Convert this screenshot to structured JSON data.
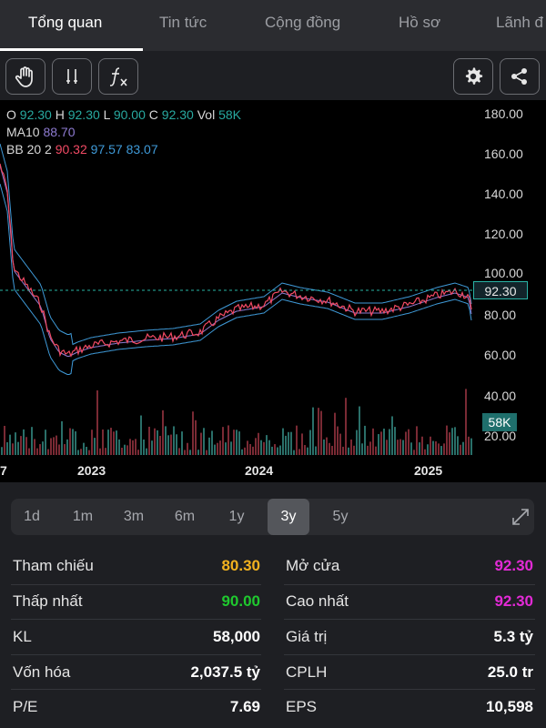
{
  "tabs": [
    {
      "label": "Tổng quan",
      "active": true
    },
    {
      "label": "Tin tức",
      "active": false
    },
    {
      "label": "Cộng đồng",
      "active": false
    },
    {
      "label": "Hồ sơ",
      "active": false
    },
    {
      "label": "Lãnh đ",
      "active": false
    }
  ],
  "toolbar": {
    "icons": [
      "hand-icon",
      "indicator-icon",
      "function-icon",
      "settings-icon",
      "share-icon"
    ],
    "fx_label": "f"
  },
  "chart": {
    "legend": {
      "o_label": "O",
      "o": "92.30",
      "h_label": "H",
      "h": "92.30",
      "l_label": "L",
      "l": "90.00",
      "c_label": "C",
      "c": "92.30",
      "vol_label": "Vol",
      "vol": "58K",
      "ma_label": "MA10",
      "ma": "88.70",
      "bb_label": "BB 20 2",
      "bb_mid": "90.32",
      "bb_up": "97.57",
      "bb_low": "83.07"
    },
    "y_ticks": [
      "180.00",
      "160.00",
      "140.00",
      "120.00",
      "100.00",
      "80.00",
      "60.00",
      "40.00",
      "20.00"
    ],
    "current_price": "92.30",
    "current_vol": "58K",
    "x_ticks": [
      "7",
      "2023",
      "2024",
      "2025"
    ],
    "colors": {
      "price": "#f14a64",
      "ma": "#8e7bd1",
      "bb": "#3f9ad8",
      "accent": "#29b3a5"
    }
  },
  "ranges": {
    "items": [
      "1d",
      "1m",
      "3m",
      "6m",
      "1y",
      "3y",
      "5y"
    ],
    "selected": "3y"
  },
  "stats": {
    "left": [
      {
        "label": "Tham chiếu",
        "value": "80.30",
        "color": "#f2b21f"
      },
      {
        "label": "Thấp nhất",
        "value": "90.00",
        "color": "#1fc92e"
      },
      {
        "label": "KL",
        "value": "58,000",
        "color": "#ffffff"
      },
      {
        "label": "Vốn hóa",
        "value": "2,037.5 tỷ",
        "color": "#ffffff"
      },
      {
        "label": "P/E",
        "value": "7.69",
        "color": "#ffffff"
      }
    ],
    "right": [
      {
        "label": "Mở cửa",
        "value": "92.30",
        "color": "#e32ad6"
      },
      {
        "label": "Cao nhất",
        "value": "92.30",
        "color": "#e32ad6"
      },
      {
        "label": "Giá trị",
        "value": "5.3 tỷ",
        "color": "#ffffff"
      },
      {
        "label": "CPLH",
        "value": "25.0 tr",
        "color": "#ffffff"
      },
      {
        "label": "EPS",
        "value": "10,598",
        "color": "#ffffff"
      }
    ]
  }
}
